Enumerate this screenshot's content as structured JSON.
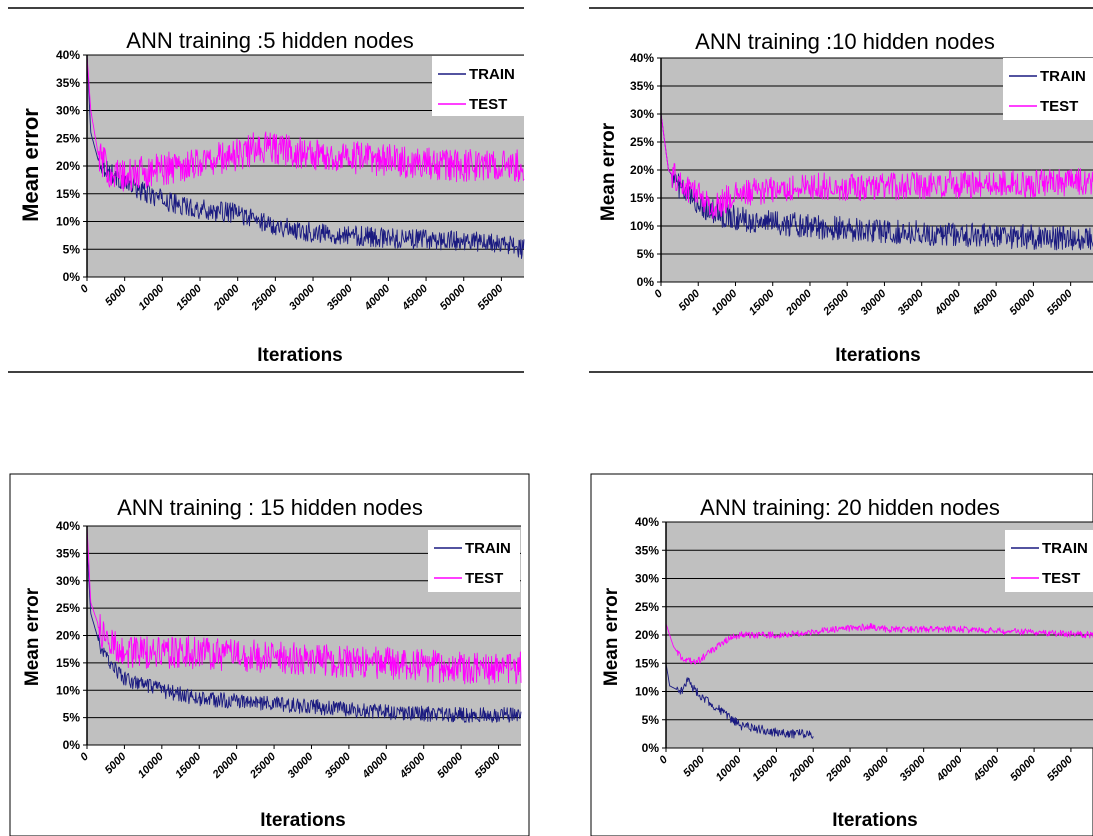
{
  "chart_data": [
    {
      "type": "line",
      "title": "ANN training :5 hidden nodes",
      "ylabel": "Mean error",
      "xlabel": "Iterations",
      "ylim": [
        0,
        0.4
      ],
      "xlim": [
        0,
        58000
      ],
      "yticks": [
        "0%",
        "5%",
        "10%",
        "15%",
        "20%",
        "25%",
        "30%",
        "35%",
        "40%"
      ],
      "xticks": [
        "0",
        "5000",
        "10000",
        "15000",
        "20000",
        "25000",
        "30000",
        "35000",
        "40000",
        "45000",
        "50000",
        "55000"
      ],
      "grid": true,
      "legend": "top-right",
      "series": [
        {
          "name": "TRAIN",
          "color": "#1a1a80",
          "noise": 0.018,
          "points": [
            [
              0,
              0.4
            ],
            [
              500,
              0.26
            ],
            [
              1500,
              0.21
            ],
            [
              3000,
              0.19
            ],
            [
              5000,
              0.17
            ],
            [
              8000,
              0.15
            ],
            [
              12000,
              0.13
            ],
            [
              16000,
              0.12
            ],
            [
              20000,
              0.115
            ],
            [
              23000,
              0.1
            ],
            [
              26000,
              0.09
            ],
            [
              30000,
              0.08
            ],
            [
              40000,
              0.07
            ],
            [
              50000,
              0.065
            ],
            [
              55000,
              0.06
            ],
            [
              58000,
              0.05
            ]
          ]
        },
        {
          "name": "TEST",
          "color": "#ff00ff",
          "noise": 0.03,
          "points": [
            [
              0,
              0.4
            ],
            [
              500,
              0.3
            ],
            [
              1500,
              0.22
            ],
            [
              3000,
              0.19
            ],
            [
              5000,
              0.18
            ],
            [
              8000,
              0.19
            ],
            [
              12000,
              0.2
            ],
            [
              16000,
              0.21
            ],
            [
              20000,
              0.22
            ],
            [
              23000,
              0.235
            ],
            [
              26000,
              0.23
            ],
            [
              30000,
              0.22
            ],
            [
              40000,
              0.21
            ],
            [
              50000,
              0.2
            ],
            [
              58000,
              0.2
            ]
          ]
        }
      ]
    },
    {
      "type": "line",
      "title": "ANN training :10 hidden nodes",
      "ylabel": "Mean error",
      "xlabel": "Iterations",
      "ylim": [
        0,
        0.4
      ],
      "xlim": [
        0,
        58000
      ],
      "yticks": [
        "0%",
        "5%",
        "10%",
        "15%",
        "20%",
        "25%",
        "30%",
        "35%",
        "40%"
      ],
      "xticks": [
        "0",
        "5000",
        "10000",
        "15000",
        "20000",
        "25000",
        "30000",
        "35000",
        "40000",
        "45000",
        "50000",
        "55000"
      ],
      "grid": true,
      "legend": "top-right",
      "series": [
        {
          "name": "TRAIN",
          "color": "#1a1a80",
          "noise": 0.022,
          "points": [
            [
              0,
              0.3
            ],
            [
              1000,
              0.2
            ],
            [
              3000,
              0.16
            ],
            [
              5000,
              0.14
            ],
            [
              8000,
              0.12
            ],
            [
              12000,
              0.11
            ],
            [
              20000,
              0.1
            ],
            [
              30000,
              0.09
            ],
            [
              40000,
              0.085
            ],
            [
              50000,
              0.08
            ],
            [
              58000,
              0.075
            ]
          ]
        },
        {
          "name": "TEST",
          "color": "#ff00ff",
          "noise": 0.025,
          "points": [
            [
              0,
              0.3
            ],
            [
              1000,
              0.2
            ],
            [
              3000,
              0.17
            ],
            [
              5000,
              0.16
            ],
            [
              7000,
              0.13
            ],
            [
              9000,
              0.15
            ],
            [
              12000,
              0.16
            ],
            [
              20000,
              0.17
            ],
            [
              30000,
              0.17
            ],
            [
              40000,
              0.175
            ],
            [
              50000,
              0.175
            ],
            [
              58000,
              0.18
            ]
          ]
        }
      ]
    },
    {
      "type": "line",
      "title": "ANN training : 15 hidden nodes",
      "ylabel": "Mean error",
      "xlabel": "Iterations",
      "ylim": [
        0,
        0.4
      ],
      "xlim": [
        0,
        58000
      ],
      "yticks": [
        "0%",
        "5%",
        "10%",
        "15%",
        "20%",
        "25%",
        "30%",
        "35%",
        "40%"
      ],
      "xticks": [
        "0",
        "5000",
        "10000",
        "15000",
        "20000",
        "25000",
        "30000",
        "35000",
        "40000",
        "45000",
        "50000",
        "55000"
      ],
      "grid": true,
      "legend": "top-right",
      "series": [
        {
          "name": "TRAIN",
          "color": "#1a1a80",
          "noise": 0.014,
          "points": [
            [
              0,
              0.36
            ],
            [
              500,
              0.24
            ],
            [
              2000,
              0.17
            ],
            [
              5000,
              0.12
            ],
            [
              10000,
              0.1
            ],
            [
              15000,
              0.085
            ],
            [
              20000,
              0.08
            ],
            [
              30000,
              0.07
            ],
            [
              40000,
              0.06
            ],
            [
              50000,
              0.055
            ],
            [
              58000,
              0.055
            ]
          ]
        },
        {
          "name": "TEST",
          "color": "#ff00ff",
          "noise": 0.03,
          "points": [
            [
              0,
              0.4
            ],
            [
              500,
              0.26
            ],
            [
              2000,
              0.2
            ],
            [
              5000,
              0.17
            ],
            [
              10000,
              0.17
            ],
            [
              20000,
              0.165
            ],
            [
              30000,
              0.155
            ],
            [
              40000,
              0.15
            ],
            [
              50000,
              0.14
            ],
            [
              58000,
              0.14
            ]
          ]
        }
      ]
    },
    {
      "type": "line",
      "title": "ANN training: 20 hidden nodes",
      "ylabel": "Mean error",
      "xlabel": "Iterations",
      "ylim": [
        0,
        0.4
      ],
      "xlim": [
        0,
        58000
      ],
      "yticks": [
        "0%",
        "5%",
        "10%",
        "15%",
        "20%",
        "25%",
        "30%",
        "35%",
        "40%"
      ],
      "xticks": [
        "0",
        "5000",
        "10000",
        "15000",
        "20000",
        "25000",
        "30000",
        "35000",
        "40000",
        "45000",
        "50000",
        "55000"
      ],
      "grid": true,
      "legend": "top-right",
      "series": [
        {
          "name": "TRAIN",
          "color": "#1a1a80",
          "noise": 0.008,
          "points": [
            [
              0,
              0.15
            ],
            [
              500,
              0.11
            ],
            [
              2000,
              0.1
            ],
            [
              3000,
              0.12
            ],
            [
              4000,
              0.1
            ],
            [
              6000,
              0.08
            ],
            [
              8000,
              0.06
            ],
            [
              10000,
              0.04
            ],
            [
              12000,
              0.035
            ],
            [
              14000,
              0.03
            ],
            [
              16000,
              0.025
            ],
            [
              20000,
              0.025
            ]
          ]
        },
        {
          "name": "TEST",
          "color": "#ff00ff",
          "noise": 0.006,
          "points": [
            [
              0,
              0.22
            ],
            [
              1000,
              0.18
            ],
            [
              2000,
              0.16
            ],
            [
              4000,
              0.15
            ],
            [
              6000,
              0.17
            ],
            [
              8000,
              0.19
            ],
            [
              10000,
              0.2
            ],
            [
              15000,
              0.2
            ],
            [
              20000,
              0.205
            ],
            [
              23000,
              0.21
            ],
            [
              28000,
              0.215
            ],
            [
              30000,
              0.21
            ],
            [
              40000,
              0.21
            ],
            [
              58000,
              0.2
            ]
          ]
        }
      ]
    }
  ]
}
